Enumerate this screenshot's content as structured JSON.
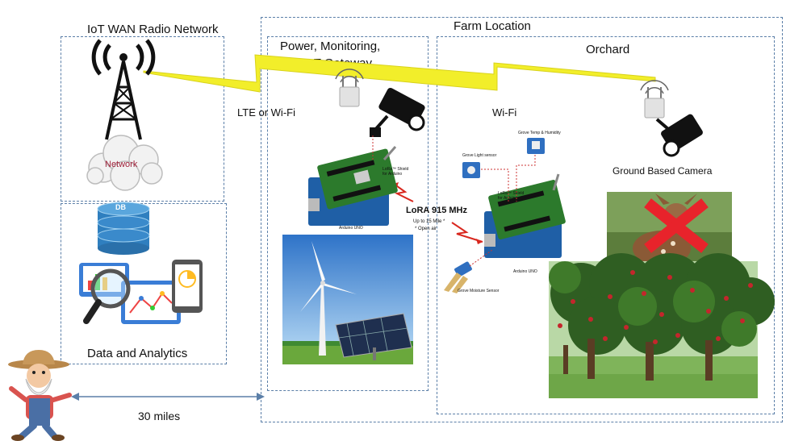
{
  "sections": {
    "iot_wan": "IoT WAN Radio Network",
    "farm_location": "Farm Location",
    "gateway": [
      "Power, Monitoring,",
      "and IoT Gateway"
    ],
    "orchard": "Orchard",
    "data_analytics": "Data and Analytics"
  },
  "links": {
    "lte": "LTE or Wi-Fi",
    "wifi": "Wi-Fi",
    "lora": "LoRA 915 MHz",
    "lora_note": [
      "Up to 15 Mile *",
      "* Open air"
    ],
    "distance": "30 miles"
  },
  "labels": {
    "network": "Network",
    "db": "DB",
    "camera": "Ground Based Camera"
  },
  "boards": {
    "left_shield": [
      "LoRa™ Shield",
      "for Arduino"
    ],
    "left_uno": "Arduino UNO",
    "right_shield": [
      "LoRa™ Shield",
      "for Arduino"
    ],
    "right_uno": "Arduino UNO",
    "temp_sensor": "Grove Temp & Humidity",
    "light_sensor": "Grove Light sensor",
    "moisture_sensor": "Grove Moisture Sensor"
  },
  "colors": {
    "dashed_border": "#5b7fa8",
    "link_yellow": "#f2ee2a",
    "lora_red": "#d9281f",
    "db_blue": "#2f7fbf"
  }
}
